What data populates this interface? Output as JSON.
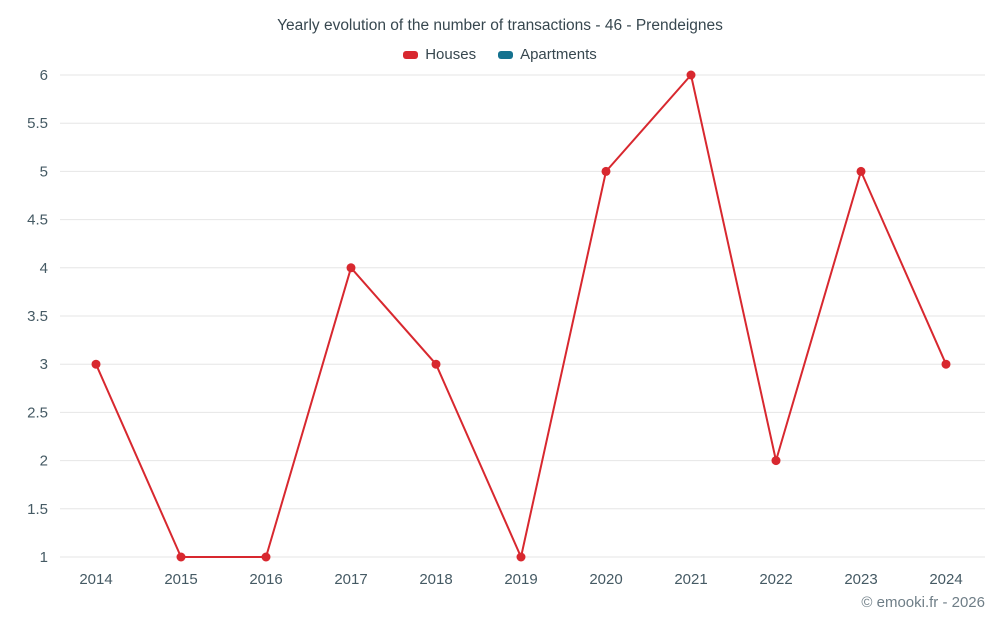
{
  "title": "Yearly evolution of the number of transactions - 46 - Prendeignes",
  "legend": [
    {
      "label": "Houses",
      "color": "#d8282f"
    },
    {
      "label": "Apartments",
      "color": "#15728f"
    }
  ],
  "copyright": "© emooki.fr - 2026",
  "colors": {
    "grid": "#e6e6e6",
    "tick_text": "#455a64",
    "title_text": "#37474f",
    "copyright_text": "#6f7e87"
  },
  "chart_data": {
    "type": "line",
    "title": "Yearly evolution of the number of transactions - 46 - Prendeignes",
    "categories": [
      "2014",
      "2015",
      "2016",
      "2017",
      "2018",
      "2019",
      "2020",
      "2021",
      "2022",
      "2023",
      "2024"
    ],
    "series": [
      {
        "name": "Houses",
        "color": "#d8282f",
        "values": [
          3,
          1,
          1,
          4,
          3,
          1,
          5,
          6,
          2,
          5,
          3
        ]
      },
      {
        "name": "Apartments",
        "color": "#15728f",
        "values": []
      }
    ],
    "xlabel": "",
    "ylabel": "",
    "ylim": [
      1,
      6
    ],
    "yticks": [
      1,
      1.5,
      2,
      2.5,
      3,
      3.5,
      4,
      4.5,
      5,
      5.5,
      6
    ],
    "grid": "horizontal",
    "legend_position": "top"
  }
}
